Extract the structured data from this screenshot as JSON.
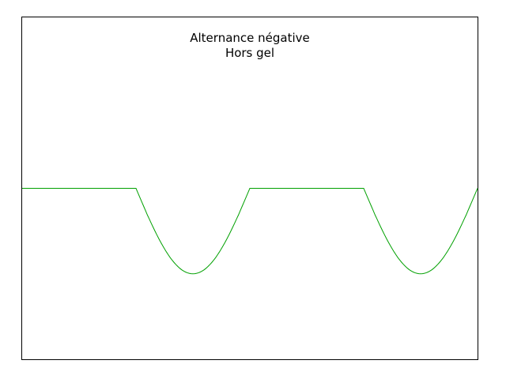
{
  "chart_data": {
    "type": "line",
    "title": "Alternance négative",
    "subtitle": "Hors gel",
    "xlabel": "",
    "ylabel": "",
    "xlim": [
      0,
      2
    ],
    "ylim": [
      -1,
      1
    ],
    "grid": false,
    "series": [
      {
        "color": "#00a000",
        "x": [
          0,
          0.5,
          0.55,
          0.6,
          0.65,
          0.7,
          0.75,
          0.8,
          0.85,
          0.9,
          0.95,
          1.0,
          1.5,
          1.55,
          1.6,
          1.65,
          1.7,
          1.75,
          1.8,
          1.85,
          1.9,
          1.95,
          2.0
        ],
        "y": [
          0,
          0,
          -0.156,
          -0.294,
          -0.405,
          -0.476,
          -0.5,
          -0.476,
          -0.405,
          -0.294,
          -0.156,
          0,
          0,
          -0.156,
          -0.294,
          -0.405,
          -0.476,
          -0.5,
          -0.476,
          -0.405,
          -0.294,
          -0.156,
          0
        ]
      }
    ]
  }
}
